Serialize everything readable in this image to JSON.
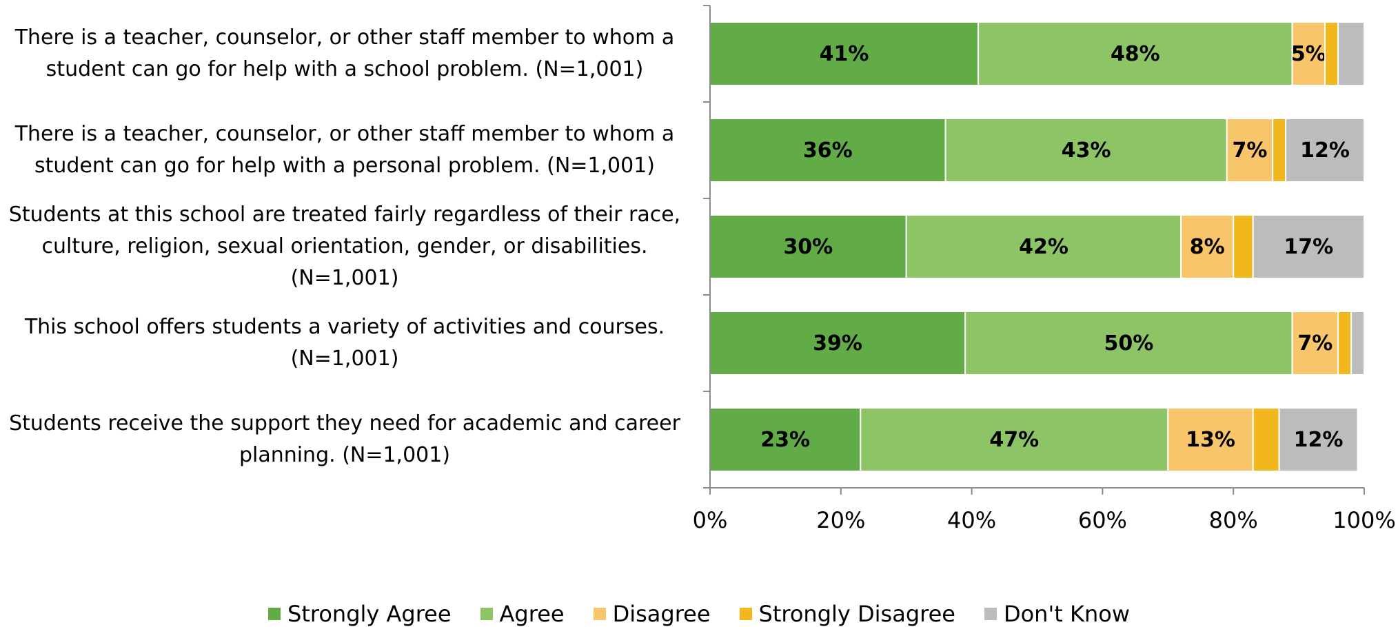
{
  "chart_data": {
    "type": "bar",
    "orientation": "horizontal",
    "stacked": true,
    "categories": [
      "There is a teacher, counselor, or other staff member to whom a student can go for help with a school problem. (N=1,001)",
      "There is a teacher, counselor, or other staff member to whom a student can go for help with a personal problem. (N=1,001)",
      "Students at this school are treated fairly regardless of their race, culture, religion, sexual orientation, gender, or disabilities. (N=1,001)",
      "This school offers students a variety of activities and courses. (N=1,001)",
      "Students receive the support they need for academic and career planning. (N=1,001)"
    ],
    "category_lines": [
      [
        "There is a teacher, counselor, or other staff member to whom a",
        "student can go for help with a school problem. (N=1,001)"
      ],
      [
        "There is a teacher, counselor, or other staff member to whom a",
        "student can go for help with a personal problem. (N=1,001)"
      ],
      [
        "Students at this school are treated fairly regardless of their race,",
        "culture, religion, sexual orientation, gender, or disabilities.",
        "(N=1,001)"
      ],
      [
        "This school offers students a variety of activities and courses.",
        "(N=1,001)"
      ],
      [
        "Students receive the support they need for academic and career",
        "planning. (N=1,001)"
      ]
    ],
    "series": [
      {
        "name": "Strongly Agree",
        "color": "#62ac47",
        "values": [
          41,
          36,
          30,
          39,
          23
        ],
        "labels": [
          "41%",
          "36%",
          "30%",
          "39%",
          "23%"
        ]
      },
      {
        "name": "Agree",
        "color": "#8dc466",
        "values": [
          48,
          43,
          42,
          50,
          47
        ],
        "labels": [
          "48%",
          "43%",
          "42%",
          "50%",
          "47%"
        ]
      },
      {
        "name": "Disagree",
        "color": "#f8c56b",
        "values": [
          5,
          7,
          8,
          7,
          13
        ],
        "labels": [
          "5%",
          "7%",
          "8%",
          "7%",
          "13%"
        ]
      },
      {
        "name": "Strongly Disagree",
        "color": "#f2b71c",
        "values": [
          2,
          2,
          3,
          2,
          4
        ],
        "labels": [
          "",
          "",
          "",
          "",
          ""
        ]
      },
      {
        "name": "Don't Know",
        "color": "#bcbcbc",
        "values": [
          4,
          12,
          17,
          2,
          12
        ],
        "labels": [
          "",
          "12%",
          "17%",
          "",
          "12%"
        ]
      }
    ],
    "x_ticks": [
      "0%",
      "20%",
      "40%",
      "60%",
      "80%",
      "100%"
    ],
    "xlim": [
      0,
      100
    ],
    "grid": false,
    "legend_position": "bottom"
  }
}
